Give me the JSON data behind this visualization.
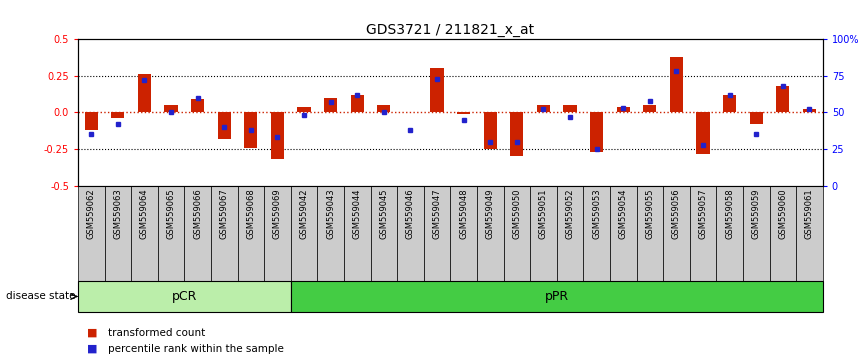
{
  "title": "GDS3721 / 211821_x_at",
  "samples": [
    "GSM559062",
    "GSM559063",
    "GSM559064",
    "GSM559065",
    "GSM559066",
    "GSM559067",
    "GSM559068",
    "GSM559069",
    "GSM559042",
    "GSM559043",
    "GSM559044",
    "GSM559045",
    "GSM559046",
    "GSM559047",
    "GSM559048",
    "GSM559049",
    "GSM559050",
    "GSM559051",
    "GSM559052",
    "GSM559053",
    "GSM559054",
    "GSM559055",
    "GSM559056",
    "GSM559057",
    "GSM559058",
    "GSM559059",
    "GSM559060",
    "GSM559061"
  ],
  "transformed_count": [
    -0.12,
    -0.04,
    0.26,
    0.05,
    0.09,
    -0.18,
    -0.24,
    -0.32,
    0.04,
    0.1,
    0.12,
    0.05,
    0.0,
    0.3,
    -0.01,
    -0.25,
    -0.3,
    0.05,
    0.05,
    -0.27,
    0.04,
    0.05,
    0.38,
    -0.28,
    0.12,
    -0.08,
    0.18,
    0.02
  ],
  "percentile_rank": [
    35,
    42,
    72,
    50,
    60,
    40,
    38,
    33,
    48,
    57,
    62,
    50,
    38,
    73,
    45,
    30,
    30,
    52,
    47,
    25,
    53,
    58,
    78,
    28,
    62,
    35,
    68,
    52
  ],
  "pCR_count": 8,
  "pPR_count": 20,
  "pCR_label": "pCR",
  "pPR_label": "pPR",
  "disease_state_label": "disease state",
  "ylim": [
    -0.5,
    0.5
  ],
  "yticks_left": [
    -0.5,
    -0.25,
    0.0,
    0.25,
    0.5
  ],
  "yticks_right": [
    0,
    25,
    50,
    75,
    100
  ],
  "bar_color": "#cc2200",
  "dot_color": "#2222cc",
  "zero_line_color": "#cc2200",
  "pCR_color": "#bbeeaa",
  "pPR_color": "#44cc44",
  "tick_label_bg": "#cccccc",
  "legend_bar_label": "transformed count",
  "legend_dot_label": "percentile rank within the sample",
  "title_fontsize": 10,
  "tick_fontsize": 7,
  "label_fontsize": 6
}
